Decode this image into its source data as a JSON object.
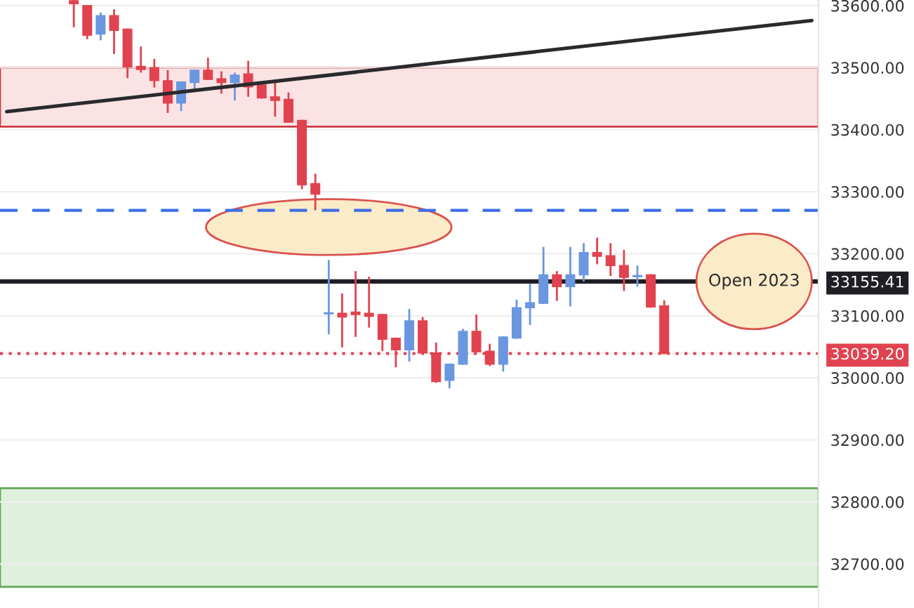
{
  "chart_data": {
    "type": "candlestick",
    "categories": [
      null,
      null,
      null,
      null,
      null,
      null,
      null,
      null,
      null,
      null,
      null,
      null,
      null,
      null,
      null,
      null,
      null,
      null,
      null,
      null,
      null,
      null,
      null,
      null,
      null,
      null,
      null,
      null,
      null,
      null,
      null,
      null,
      null,
      null,
      null,
      null,
      null,
      null,
      null,
      null,
      null,
      null,
      null,
      null,
      null,
      null,
      null,
      null,
      null,
      null,
      null,
      null,
      null,
      null,
      null,
      null,
      null,
      null,
      null,
      null,
      null
    ],
    "ohlc": [
      null,
      null,
      null,
      null,
      null,
      [
        33608,
        33609,
        33565,
        33603
      ],
      [
        33600,
        33601,
        33546,
        33552
      ],
      [
        33554,
        33589,
        33544,
        33584
      ],
      [
        33584,
        33594,
        33522,
        33560
      ],
      [
        33562,
        33563,
        33483,
        33501
      ],
      [
        33502,
        33534,
        33492,
        33497
      ],
      [
        33500,
        33514,
        33468,
        33479
      ],
      [
        33479,
        33496,
        33427,
        33443
      ],
      [
        33443,
        33477,
        33430,
        33477
      ],
      [
        33476,
        33497,
        33462,
        33496
      ],
      [
        33496,
        33516,
        33480,
        33481
      ],
      [
        33482,
        33494,
        33458,
        33476
      ],
      [
        33476,
        33492,
        33447,
        33488
      ],
      [
        33490,
        33511,
        33453,
        33469
      ],
      [
        33472,
        33473,
        33450,
        33451
      ],
      [
        33453,
        33481,
        33421,
        33447
      ],
      [
        33449,
        33460,
        33411,
        33412
      ],
      [
        33415,
        33416,
        33304,
        33311
      ],
      [
        33313,
        33329,
        33270,
        33296
      ],
      [
        33103,
        33190,
        33070,
        33105
      ],
      [
        33104,
        33136,
        33049,
        33098
      ],
      [
        33106,
        33172,
        33066,
        33102
      ],
      [
        33104,
        33163,
        33081,
        33099
      ],
      [
        33102,
        33103,
        33043,
        33062
      ],
      [
        33064,
        33065,
        33017,
        33045
      ],
      [
        33045,
        33111,
        33026,
        33092
      ],
      [
        33092,
        33098,
        33039,
        33040
      ],
      [
        33040,
        33057,
        32992,
        32994
      ],
      [
        32996,
        33023,
        32983,
        33022
      ],
      [
        33022,
        33079,
        33021,
        33075
      ],
      [
        33075,
        33102,
        33041,
        33042
      ],
      [
        33043,
        33055,
        33019,
        33022
      ],
      [
        33022,
        33067,
        33010,
        33066
      ],
      [
        33064,
        33126,
        33063,
        33113
      ],
      [
        33113,
        33152,
        33085,
        33121
      ],
      [
        33120,
        33211,
        33119,
        33166
      ],
      [
        33166,
        33172,
        33124,
        33147
      ],
      [
        33147,
        33211,
        33115,
        33166
      ],
      [
        33166,
        33217,
        33155,
        33202
      ],
      [
        33202,
        33226,
        33183,
        33196
      ],
      [
        33197,
        33217,
        33164,
        33181
      ],
      [
        33181,
        33206,
        33140,
        33162
      ],
      [
        33163,
        33181,
        33147,
        33165
      ],
      [
        33166,
        33167,
        33113,
        33114
      ],
      [
        33116,
        33125,
        33038,
        33039.2
      ],
      null,
      null,
      null,
      null,
      null,
      null,
      null,
      null,
      null,
      null,
      null
    ],
    "colors": [
      null,
      null,
      null,
      null,
      null,
      "#e0434f",
      "#e0434f",
      "#6a97df",
      "#e0434f",
      "#e0434f",
      "#e0434f",
      "#e0434f",
      "#e0434f",
      "#6a97df",
      "#6a97df",
      "#e0434f",
      "#e0434f",
      "#6a97df",
      "#e0434f",
      "#e0434f",
      "#e0434f",
      "#e0434f",
      "#e0434f",
      "#e0434f",
      "#6a97df",
      "#e0434f",
      "#e0434f",
      "#e0434f",
      "#e0434f",
      "#e0434f",
      "#6a97df",
      "#e0434f",
      "#e0434f",
      "#6a97df",
      "#6a97df",
      "#e0434f",
      "#e0434f",
      "#6a97df",
      "#6a97df",
      "#6a97df",
      "#6a97df",
      "#e0434f",
      "#6a97df",
      "#6a97df",
      "#e0434f",
      "#e0434f",
      "#e0434f",
      "#6a97df",
      "#e0434f",
      "#e0434f",
      null,
      null,
      null,
      null,
      null,
      null,
      null,
      null,
      null,
      null,
      null
    ],
    "series": [
      {
        "type": "line",
        "values": [
          33429,
          null,
          null,
          null,
          null,
          null,
          null,
          null,
          null,
          null,
          null,
          null,
          null,
          null,
          null,
          null,
          null,
          null,
          null,
          null,
          null,
          null,
          null,
          null,
          null,
          null,
          null,
          null,
          null,
          null,
          null,
          null,
          null,
          null,
          null,
          null,
          null,
          null,
          null,
          null,
          null,
          null,
          null,
          null,
          null,
          null,
          null,
          null,
          null,
          null,
          null,
          null,
          null,
          null,
          null,
          null,
          null,
          null,
          null,
          null,
          33576
        ],
        "color": "#2a2a2e"
      }
    ],
    "ylim": [
      32629,
      33609
    ],
    "yticks": [
      {
        "value": 32700,
        "label": "32700.00"
      },
      {
        "value": 32800,
        "label": "32800.00"
      },
      {
        "value": 32900,
        "label": "32900.00"
      },
      {
        "value": 33000,
        "label": "33000.00"
      },
      {
        "value": 33039.2,
        "label": "33039.20"
      },
      {
        "value": 33100,
        "label": "33100.00"
      },
      {
        "value": 33155.41,
        "label": "33155.41"
      },
      {
        "value": 33200,
        "label": "33200.00"
      },
      {
        "value": 33300,
        "label": "33300.00"
      },
      {
        "value": 33400,
        "label": "33400.00"
      },
      {
        "value": 33500,
        "label": "33500.00"
      },
      {
        "value": 33600,
        "label": "33600.00"
      }
    ],
    "tick_labels": "y",
    "grid": "y",
    "bands": [
      {
        "axis": "y",
        "from": 33405,
        "to": 33500,
        "color": "#fbe3e4"
      },
      {
        "axis": "y",
        "from": 32663,
        "to": 32822,
        "color": "#dff0dc"
      }
    ],
    "ref_lines": [
      {
        "axis": "y",
        "value": 33270,
        "color": "#3d6ee8",
        "line_style": "dashed"
      },
      {
        "axis": "y",
        "value": 33155.41,
        "label": "Open 2023",
        "color": "#1e1e24",
        "line_style": "solid"
      },
      {
        "axis": "y",
        "value": 33039.2,
        "color": "#e0434f",
        "line_style": "dotted"
      }
    ]
  }
}
